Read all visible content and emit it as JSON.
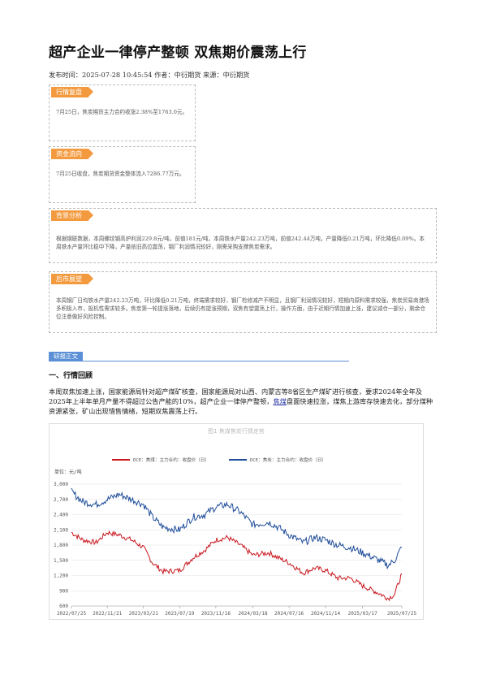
{
  "article": {
    "title": "超产企业一律停产整顿 双焦期价震荡上行",
    "meta": "发布时间：2025-07-28 10:45:54 作者：中衍期货 来源：中衍期货"
  },
  "sections": {
    "review": {
      "tag": "行情复盘",
      "text": "7月25日，焦炭期货主力合约收涨2.38%至1763.0元。"
    },
    "flow": {
      "tag": "资金流向",
      "text": "7月25日收盘，焦炭期货资金整体流入7286.77万元。"
    },
    "background": {
      "tag": "背景分析",
      "text": "根据钢联数据，本周螺纹钢高炉利润229.8元/吨，前值181元/吨，本周铁水产量242.23万吨，前值242.44万吨，产量降低0.21万吨，环比降低0.09%。本周铁水产量环比稳中下降，产量依旧高位震荡，钢厂利润情况较好，刚需采购支撑焦炭需求。"
    },
    "outlook": {
      "tag": "后市展望",
      "text": "本周钢厂日均铁水产量242.23万吨，环比降低0.21万吨，终端需求较好，钢厂检修减产不明显，且钢厂利润情况较好，短期内原料需求较强，焦炭贸易商港场多积极入市，投机性需求较多。焦炭第一轮提涨落地，后续仍有提涨预期，双焦有望震荡上行，操作方面，由于近期行情加速上涨，建议减仓一部分，剩余仓位注意做好风险控制。"
    }
  },
  "body": {
    "tag": "研报正文",
    "heading": "一、行情回顾",
    "para_before": "本周双焦加速上涨，国家能源局针对超产煤矿核查，国家能源局对山西、内蒙古等8省区生产煤矿进行核查，要求2024年全年及2025年上半年单月产量不得超过公告产能的10%，超产企业一律停产整顿，",
    "link": "焦煤",
    "para_after": "盘面快速拉涨，煤焦上游库存快速去化，部分煤种资源紧张，矿山出现惜售情绪，短期双焦震荡上行。"
  },
  "chart_data": {
    "type": "line",
    "title": "图1 焦煤焦炭行情走势",
    "ylabel": "单位：元/吨",
    "ylim": [
      600,
      3000
    ],
    "yticks": [
      600,
      900,
      1200,
      1500,
      1800,
      2100,
      2400,
      2700,
      3000
    ],
    "x_labels": [
      "2022/07/25",
      "2022/11/21",
      "2023/03/21",
      "2023/07/19",
      "2023/11/16",
      "2024/03/18",
      "2024/07/16",
      "2024/11/14",
      "2025/03/17",
      "2025/07/25"
    ],
    "x": [
      "2022/07/25",
      "2022/09/01",
      "2022/10/15",
      "2022/11/21",
      "2022/12/30",
      "2023/02/10",
      "2023/03/21",
      "2023/04/20",
      "2023/05/25",
      "2023/07/19",
      "2023/09/01",
      "2023/10/10",
      "2023/11/16",
      "2023/12/25",
      "2024/02/05",
      "2024/03/18",
      "2024/05/10",
      "2024/06/10",
      "2024/07/16",
      "2024/09/01",
      "2024/10/10",
      "2024/11/14",
      "2024/12/25",
      "2025/02/05",
      "2025/03/17",
      "2025/05/10",
      "2025/06/10",
      "2025/07/01",
      "2025/07/25"
    ],
    "series": [
      {
        "name": "DCE：焦煤：主力合约：收盘价（日）",
        "color": "#c8161d",
        "values": [
          2050,
          1900,
          1850,
          2050,
          2000,
          1900,
          1750,
          1450,
          1280,
          1300,
          1550,
          1700,
          1900,
          1950,
          1800,
          1600,
          1650,
          1550,
          1450,
          1250,
          1350,
          1300,
          1150,
          1150,
          1000,
          850,
          750,
          830,
          1240
        ]
      },
      {
        "name": "DCE：焦炭：主力合约：收盘价（日）",
        "color": "#1f4d9a",
        "values": [
          2850,
          2650,
          2600,
          2700,
          2800,
          2700,
          2600,
          2350,
          2150,
          2100,
          2350,
          2400,
          2550,
          2600,
          2450,
          2200,
          2250,
          2150,
          2000,
          1850,
          1950,
          1900,
          1800,
          1750,
          1650,
          1500,
          1400,
          1500,
          1763
        ]
      }
    ]
  }
}
